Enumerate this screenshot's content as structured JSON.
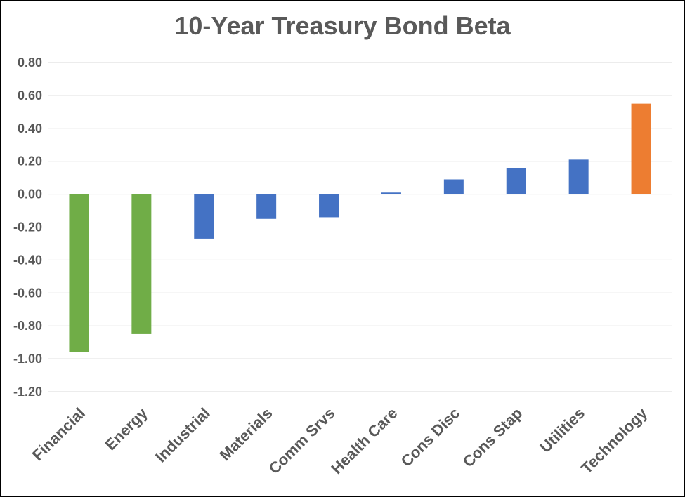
{
  "chart_data": {
    "type": "bar",
    "title": "10-Year Treasury Bond Beta",
    "xlabel": "",
    "ylabel": "",
    "ylim": [
      -1.2,
      0.8
    ],
    "yticks": [
      "0.80",
      "0.60",
      "0.40",
      "0.20",
      "0.00",
      "-0.20",
      "-0.40",
      "-0.60",
      "-0.80",
      "-1.00",
      "-1.20"
    ],
    "grid": true,
    "categories": [
      "Financial",
      "Energy",
      "Industrial",
      "Materials",
      "Comm Srvs",
      "Health Care",
      "Cons Disc",
      "Cons Stap",
      "Utilities",
      "Technology"
    ],
    "values": [
      -0.96,
      -0.85,
      -0.27,
      -0.15,
      -0.14,
      0.01,
      0.09,
      0.16,
      0.21,
      0.55
    ],
    "colors": [
      "#70AD47",
      "#70AD47",
      "#4472C4",
      "#4472C4",
      "#4472C4",
      "#4472C4",
      "#4472C4",
      "#4472C4",
      "#4472C4",
      "#ED7D31"
    ]
  }
}
